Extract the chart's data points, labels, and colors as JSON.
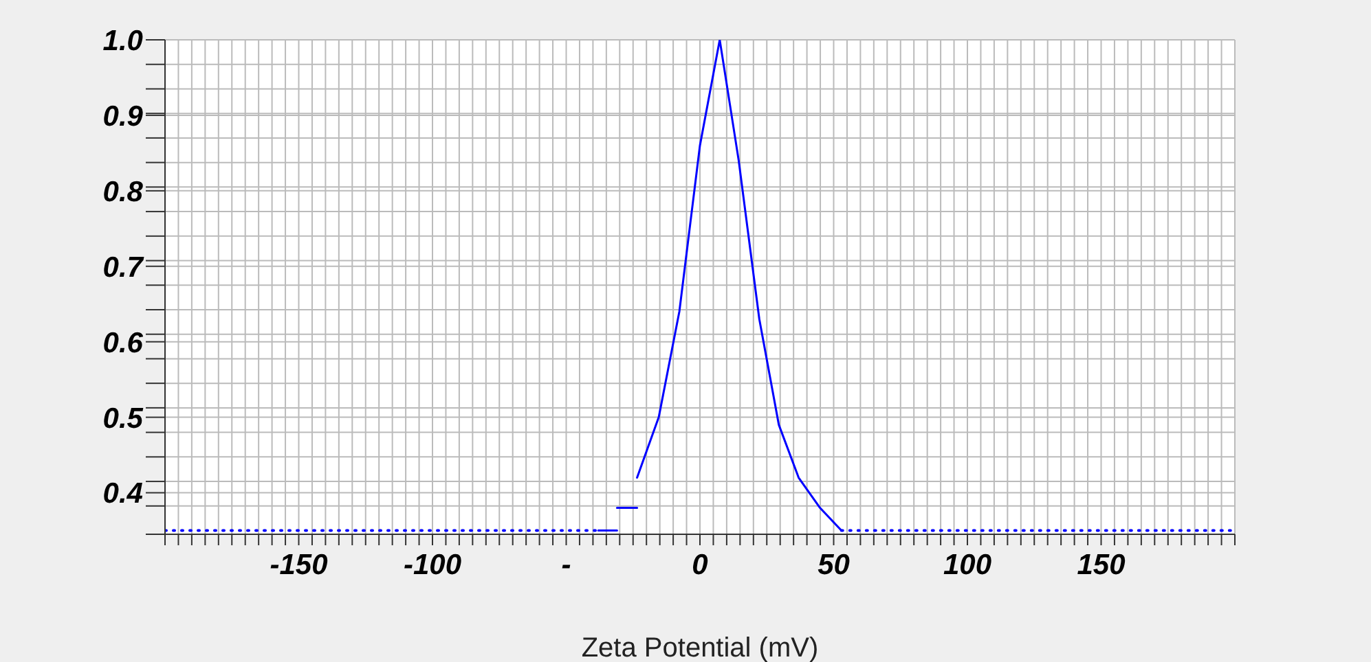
{
  "chart_data": {
    "type": "line",
    "xlabel": "Zeta Potential (mV)",
    "xlim": [
      -200,
      200
    ],
    "xticks": [
      {
        "value": -200,
        "label": null
      },
      {
        "value": -195,
        "label": null
      },
      {
        "value": -190,
        "label": null
      },
      {
        "value": -185,
        "label": null
      },
      {
        "value": -180,
        "label": null
      },
      {
        "value": -175,
        "label": null
      },
      {
        "value": -170,
        "label": null
      },
      {
        "value": -165,
        "label": null
      },
      {
        "value": -160,
        "label": null
      },
      {
        "value": -155,
        "label": null
      },
      -150,
      {
        "value": -145,
        "label": null
      },
      {
        "value": -140,
        "label": null
      },
      {
        "value": -135,
        "label": null
      },
      {
        "value": -130,
        "label": null
      },
      {
        "value": -125,
        "label": null
      },
      {
        "value": -120,
        "label": null
      },
      {
        "value": -115,
        "label": null
      },
      {
        "value": -110,
        "label": null
      },
      {
        "value": -105,
        "label": null
      },
      -100,
      {
        "value": -95,
        "label": null
      },
      {
        "value": -90,
        "label": null
      },
      {
        "value": -85,
        "label": null
      },
      {
        "value": -80,
        "label": null
      },
      {
        "value": -75,
        "label": null
      },
      {
        "value": -70,
        "label": null
      },
      {
        "value": -65,
        "label": null
      },
      {
        "value": -60,
        "label": null
      },
      {
        "value": -55,
        "label": null
      },
      {
        "value": -50,
        "label": "-"
      },
      {
        "value": -45,
        "label": null
      },
      {
        "value": -40,
        "label": null
      },
      {
        "value": -35,
        "label": null
      },
      {
        "value": -30,
        "label": null
      },
      {
        "value": -25,
        "label": null
      },
      {
        "value": -20,
        "label": null
      },
      {
        "value": -15,
        "label": null
      },
      {
        "value": -10,
        "label": null
      },
      {
        "value": -5,
        "label": null
      },
      0,
      {
        "value": 5,
        "label": null
      },
      {
        "value": 10,
        "label": null
      },
      {
        "value": 15,
        "label": null
      },
      {
        "value": 20,
        "label": null
      },
      {
        "value": 25,
        "label": null
      },
      {
        "value": 30,
        "label": null
      },
      {
        "value": 35,
        "label": null
      },
      {
        "value": 40,
        "label": null
      },
      {
        "value": 45,
        "label": null
      },
      50,
      {
        "value": 55,
        "label": null
      },
      {
        "value": 60,
        "label": null
      },
      {
        "value": 65,
        "label": null
      },
      {
        "value": 70,
        "label": null
      },
      {
        "value": 75,
        "label": null
      },
      {
        "value": 80,
        "label": null
      },
      {
        "value": 85,
        "label": null
      },
      {
        "value": 90,
        "label": null
      },
      {
        "value": 95,
        "label": null
      },
      100,
      {
        "value": 105,
        "label": null
      },
      {
        "value": 110,
        "label": null
      },
      {
        "value": 115,
        "label": null
      },
      {
        "value": 120,
        "label": null
      },
      {
        "value": 125,
        "label": null
      },
      {
        "value": 130,
        "label": null
      },
      {
        "value": 135,
        "label": null
      },
      {
        "value": 140,
        "label": null
      },
      {
        "value": 145,
        "label": null
      },
      150,
      {
        "value": 155,
        "label": null
      },
      {
        "value": 160,
        "label": null
      },
      {
        "value": 165,
        "label": null
      },
      {
        "value": 170,
        "label": null
      },
      {
        "value": 175,
        "label": null
      },
      {
        "value": 180,
        "label": null
      },
      {
        "value": 185,
        "label": null
      },
      {
        "value": 190,
        "label": null
      },
      {
        "value": 195,
        "label": null
      },
      {
        "value": 200,
        "label": null
      }
    ],
    "ylim": [
      0.345,
      1.0
    ],
    "yticks": [
      {
        "value": 0.345,
        "label": null
      },
      {
        "value": 0.3825,
        "label": null
      },
      {
        "value": 0.4,
        "label": "0.4"
      },
      {
        "value": 0.415,
        "label": null
      },
      {
        "value": 0.4475,
        "label": null
      },
      {
        "value": 0.48,
        "label": null
      },
      {
        "value": 0.5,
        "label": "0.5"
      },
      {
        "value": 0.5125,
        "label": null
      },
      {
        "value": 0.545,
        "label": null
      },
      {
        "value": 0.5775,
        "label": null
      },
      {
        "value": 0.6,
        "label": "0.6"
      },
      {
        "value": 0.61,
        "label": null
      },
      {
        "value": 0.6425,
        "label": null
      },
      {
        "value": 0.675,
        "label": null
      },
      {
        "value": 0.7,
        "label": "0.7"
      },
      {
        "value": 0.7075,
        "label": null
      },
      {
        "value": 0.74,
        "label": null
      },
      {
        "value": 0.7725,
        "label": null
      },
      {
        "value": 0.8,
        "label": "0.8"
      },
      {
        "value": 0.805,
        "label": null
      },
      {
        "value": 0.8375,
        "label": null
      },
      {
        "value": 0.87,
        "label": null
      },
      {
        "value": 0.9,
        "label": "0.9"
      },
      {
        "value": 0.9025,
        "label": null
      },
      {
        "value": 0.935,
        "label": null
      },
      {
        "value": 0.9675,
        "label": null
      },
      {
        "value": 1.0,
        "label": "1.0"
      }
    ],
    "grid": true,
    "marker": "none",
    "series": [
      {
        "color": "#0000ff",
        "line_style": "dotted",
        "x": [
          -200,
          -38
        ],
        "values": [
          0.35,
          0.35
        ]
      },
      {
        "color": "#0000ff",
        "line_style": "solid",
        "x": [
          -38,
          -31
        ],
        "values": [
          0.35,
          0.35
        ]
      },
      {
        "color": "#0000ff",
        "line_style": "solid",
        "x": [
          -31,
          -23.5
        ],
        "values": [
          0.38,
          0.38
        ]
      },
      {
        "color": "#0000ff",
        "line_style": "solid",
        "x": [
          -23.5,
          -15.4,
          -7.7,
          0,
          7.4,
          14.5,
          22.2,
          29.5,
          36.9,
          44.9,
          52.9
        ],
        "values": [
          0.42,
          0.5,
          0.64,
          0.86,
          1.0,
          0.84,
          0.63,
          0.49,
          0.42,
          0.38,
          0.35
        ]
      },
      {
        "color": "#0000ff",
        "line_style": "dotted",
        "x": [
          52.9,
          200
        ],
        "values": [
          0.35,
          0.35
        ]
      }
    ]
  }
}
